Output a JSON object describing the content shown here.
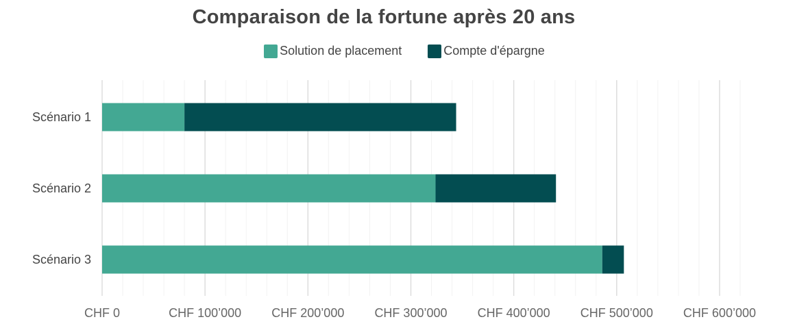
{
  "chart_data": {
    "type": "bar",
    "orientation": "horizontal",
    "stacked": true,
    "title": "Comparaison de la fortune après 20 ans",
    "categories": [
      "Scénario 1",
      "Scénario 2",
      "Scénario 3"
    ],
    "series": [
      {
        "name": "Solution de placement",
        "color": "#43a893",
        "values": [
          80000,
          324000,
          486000
        ]
      },
      {
        "name": "Compte d'épargne",
        "color": "#034d51",
        "values": [
          264000,
          117000,
          21000
        ]
      }
    ],
    "xlim": [
      0,
      620000
    ],
    "xticks": [
      0,
      100000,
      200000,
      300000,
      400000,
      500000,
      600000
    ],
    "xtick_labels": [
      "CHF 0",
      "CHF 100’000",
      "CHF 200’000",
      "CHF 300’000",
      "CHF 400’000",
      "CHF 500’000",
      "CHF 600’000"
    ],
    "grid": true,
    "legend_position": "top-center"
  }
}
